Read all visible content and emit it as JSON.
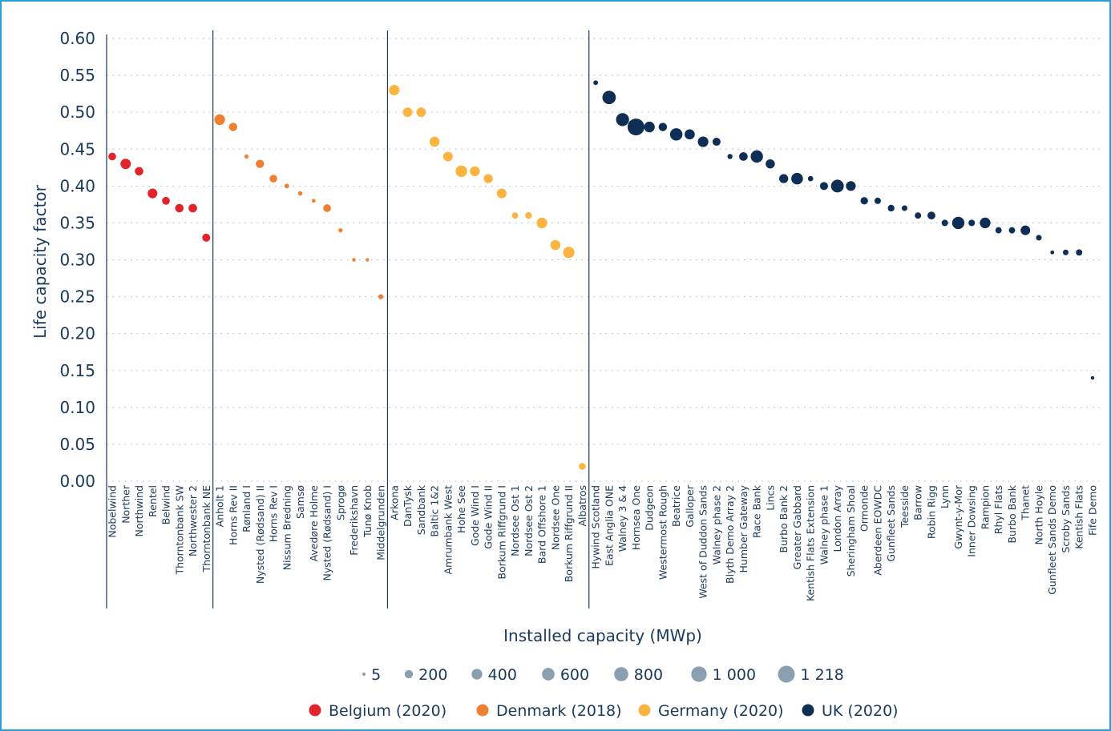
{
  "chart_data": {
    "type": "scatter",
    "xlabel": "Installed capacity (MWp)",
    "ylabel": "Life capacity factor",
    "ylim": [
      0,
      0.6
    ],
    "yticks": [
      "0.00",
      "0.05",
      "0.10",
      "0.15",
      "0.20",
      "0.25",
      "0.30",
      "0.35",
      "0.40",
      "0.45",
      "0.50",
      "0.55",
      "0.60"
    ],
    "grid": "horizontal dotted",
    "colors": {
      "frame": "#2a9fd6",
      "axis": "#1a3a5c",
      "grid": "#aab8c6",
      "size_legend_marker": "#8a9fb0",
      "text": "#1a3a5c"
    },
    "size_legend": {
      "label_values": [
        "5",
        "200",
        "400",
        "600",
        "800",
        "1 000",
        "1 218"
      ],
      "values": [
        5,
        200,
        400,
        600,
        800,
        1000,
        1218
      ]
    },
    "series": [
      {
        "name": "Belgium (2020)",
        "color": "#e3232b",
        "points": [
          {
            "label": "Nobelwind",
            "y": 0.44,
            "size": 165
          },
          {
            "label": "Norther",
            "y": 0.43,
            "size": 370
          },
          {
            "label": "Northwind",
            "y": 0.42,
            "size": 216
          },
          {
            "label": "Rentel",
            "y": 0.39,
            "size": 309
          },
          {
            "label": "Belwind",
            "y": 0.38,
            "size": 171
          },
          {
            "label": "Thorntonbank SW",
            "y": 0.37,
            "size": 216
          },
          {
            "label": "Northwester 2",
            "y": 0.37,
            "size": 219
          },
          {
            "label": "Thorntonbank NE",
            "y": 0.33,
            "size": 184
          }
        ]
      },
      {
        "name": "Denmark (2018)",
        "color": "#f07f32",
        "points": [
          {
            "label": "Anholt 1",
            "y": 0.49,
            "size": 400
          },
          {
            "label": "Horns Rev II",
            "y": 0.48,
            "size": 209
          },
          {
            "label": "Rønland I",
            "y": 0.44,
            "size": 17
          },
          {
            "label": "Nysted (Rødsand) II",
            "y": 0.43,
            "size": 207
          },
          {
            "label": "Horns Rev I",
            "y": 0.41,
            "size": 160
          },
          {
            "label": "Nissum Bredning",
            "y": 0.4,
            "size": 28
          },
          {
            "label": "Samsø",
            "y": 0.39,
            "size": 23
          },
          {
            "label": "Avedøre Holme",
            "y": 0.38,
            "size": 11
          },
          {
            "label": "Nysted (Rødsand) I",
            "y": 0.37,
            "size": 166
          },
          {
            "label": "Sprogø",
            "y": 0.34,
            "size": 21
          },
          {
            "label": "Frederikshavn",
            "y": 0.3,
            "size": 8
          },
          {
            "label": "Tunø Knob",
            "y": 0.3,
            "size": 5
          },
          {
            "label": "Middelgrunden",
            "y": 0.25,
            "size": 40
          }
        ]
      },
      {
        "name": "Germany (2020)",
        "color": "#fbb440",
        "points": [
          {
            "label": "Arkona",
            "y": 0.53,
            "size": 385
          },
          {
            "label": "DanTysk",
            "y": 0.5,
            "size": 288
          },
          {
            "label": "Sandbank",
            "y": 0.5,
            "size": 288
          },
          {
            "label": "Baltic 1&2",
            "y": 0.46,
            "size": 336
          },
          {
            "label": "Amrumbank West",
            "y": 0.44,
            "size": 302
          },
          {
            "label": "Hohe See",
            "y": 0.42,
            "size": 497
          },
          {
            "label": "Gode Wind I",
            "y": 0.42,
            "size": 330
          },
          {
            "label": "Gode Wind II",
            "y": 0.41,
            "size": 252
          },
          {
            "label": "Borkum Riffgrund I",
            "y": 0.39,
            "size": 312
          },
          {
            "label": "Nordsee Ost 1",
            "y": 0.36,
            "size": 90
          },
          {
            "label": "Nordsee Ost 2",
            "y": 0.36,
            "size": 105
          },
          {
            "label": "Bard Offshore 1",
            "y": 0.35,
            "size": 400
          },
          {
            "label": "Nordsee One",
            "y": 0.32,
            "size": 332
          },
          {
            "label": "Borkum Riffgrund II",
            "y": 0.31,
            "size": 465
          },
          {
            "label": "Albatros",
            "y": 0.02,
            "size": 112
          }
        ]
      },
      {
        "name": "UK (2020)",
        "color": "#0e2e55",
        "points": [
          {
            "label": "Hywind Scotland",
            "y": 0.54,
            "size": 30
          },
          {
            "label": "East Anglia ONE",
            "y": 0.52,
            "size": 714
          },
          {
            "label": "Walney 3 & 4",
            "y": 0.49,
            "size": 659
          },
          {
            "label": "Hornsea One",
            "y": 0.48,
            "size": 1218
          },
          {
            "label": "Dudgeon",
            "y": 0.48,
            "size": 402
          },
          {
            "label": "Westermost Rough",
            "y": 0.48,
            "size": 210
          },
          {
            "label": "Beatrice",
            "y": 0.47,
            "size": 588
          },
          {
            "label": "Galloper",
            "y": 0.47,
            "size": 353
          },
          {
            "label": "West of Duddon Sands",
            "y": 0.46,
            "size": 389
          },
          {
            "label": "Walney phase 2",
            "y": 0.46,
            "size": 184
          },
          {
            "label": "Blyth Demo Array 2",
            "y": 0.44,
            "size": 42
          },
          {
            "label": "Humber Gateway",
            "y": 0.44,
            "size": 219
          },
          {
            "label": "Race Bank",
            "y": 0.44,
            "size": 573
          },
          {
            "label": "Lincs",
            "y": 0.43,
            "size": 270
          },
          {
            "label": "Burbo Bank 2",
            "y": 0.41,
            "size": 258
          },
          {
            "label": "Greater Gabbard",
            "y": 0.41,
            "size": 504
          },
          {
            "label": "Kentish Flats Extension",
            "y": 0.41,
            "size": 50
          },
          {
            "label": "Walney phase 1",
            "y": 0.4,
            "size": 184
          },
          {
            "label": "London Array",
            "y": 0.4,
            "size": 630
          },
          {
            "label": "Sheringham Shoal",
            "y": 0.4,
            "size": 317
          },
          {
            "label": "Ormonde",
            "y": 0.38,
            "size": 150
          },
          {
            "label": "Aberdeen EOWDC",
            "y": 0.38,
            "size": 93
          },
          {
            "label": "Gunfleet Sands",
            "y": 0.37,
            "size": 108
          },
          {
            "label": "Teesside",
            "y": 0.37,
            "size": 62
          },
          {
            "label": "Barrow",
            "y": 0.36,
            "size": 90
          },
          {
            "label": "Robin Rigg",
            "y": 0.36,
            "size": 174
          },
          {
            "label": "Lynn",
            "y": 0.35,
            "size": 97
          },
          {
            "label": "Gwynt-y-Mor",
            "y": 0.35,
            "size": 576
          },
          {
            "label": "Inner Dowsing",
            "y": 0.35,
            "size": 97
          },
          {
            "label": "Rampion",
            "y": 0.35,
            "size": 400
          },
          {
            "label": "Rhyl Flats",
            "y": 0.34,
            "size": 90
          },
          {
            "label": "Burbo Bank",
            "y": 0.34,
            "size": 90
          },
          {
            "label": "Thanet",
            "y": 0.34,
            "size": 300
          },
          {
            "label": "North Hoyle",
            "y": 0.33,
            "size": 60
          },
          {
            "label": "Gunfleet Sands Demo",
            "y": 0.31,
            "size": 12
          },
          {
            "label": "Scroby Sands",
            "y": 0.31,
            "size": 60
          },
          {
            "label": "Kentish Flats",
            "y": 0.31,
            "size": 90
          },
          {
            "label": "Fife Demo",
            "y": 0.14,
            "size": 7
          }
        ]
      }
    ]
  }
}
